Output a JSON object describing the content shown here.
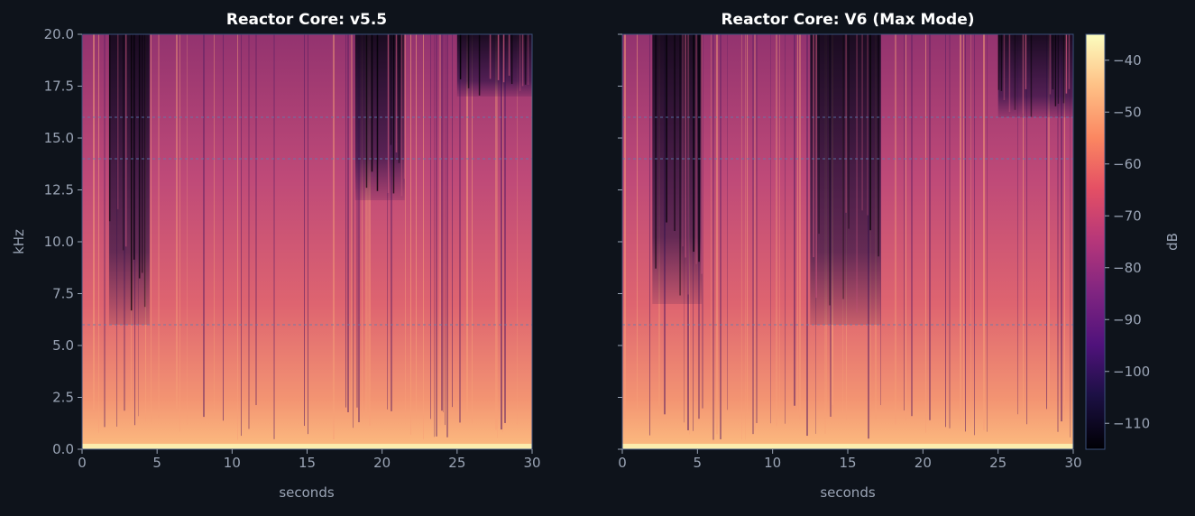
{
  "colors": {
    "background": "#0e131b",
    "text": "#9aa4b5",
    "title": "#ffffff",
    "guide_line": "#5b7fb3",
    "frame": "#3a4f7a"
  },
  "chart_data": [
    {
      "type": "heatmap",
      "title": "Reactor Core: v5.5",
      "xlabel": "seconds",
      "ylabel": "kHz",
      "xlim": [
        0,
        30
      ],
      "ylim": [
        0,
        20
      ],
      "xticks": [
        "0",
        "5",
        "10",
        "15",
        "20",
        "25",
        "30"
      ],
      "yticks": [
        "0.0",
        "2.5",
        "5.0",
        "7.5",
        "10.0",
        "12.5",
        "15.0",
        "17.5",
        "20.0"
      ],
      "guide_lines_khz": [
        6,
        14,
        16
      ],
      "dark_regions": [
        {
          "x": [
            1.8,
            4.5
          ],
          "y_from_khz": 6
        },
        {
          "x": [
            18.2,
            21.5
          ],
          "y_from_khz": 12
        },
        {
          "x": [
            25.0,
            30.0
          ],
          "y_from_khz": 17
        }
      ]
    },
    {
      "type": "heatmap",
      "title": "Reactor Core: V6 (Max Mode)",
      "xlabel": "seconds",
      "ylabel": "",
      "xlim": [
        0,
        30
      ],
      "ylim": [
        0,
        20
      ],
      "xticks": [
        "0",
        "5",
        "10",
        "15",
        "20",
        "25",
        "30"
      ],
      "guide_lines_khz": [
        6,
        14,
        16
      ],
      "dark_regions": [
        {
          "x": [
            2.0,
            5.3
          ],
          "y_from_khz": 7
        },
        {
          "x": [
            12.5,
            17.2
          ],
          "y_from_khz": 6
        },
        {
          "x": [
            25.0,
            30.0
          ],
          "y_from_khz": 16
        }
      ],
      "colorbar": {
        "label": "dB",
        "range": [
          -115,
          -35
        ],
        "ticks": [
          "−40",
          "−50",
          "−60",
          "−70",
          "−80",
          "−90",
          "−100",
          "−110"
        ],
        "tick_values": [
          -40,
          -50,
          -60,
          -70,
          -80,
          -90,
          -100,
          -110
        ],
        "colormap": "magma"
      }
    }
  ]
}
